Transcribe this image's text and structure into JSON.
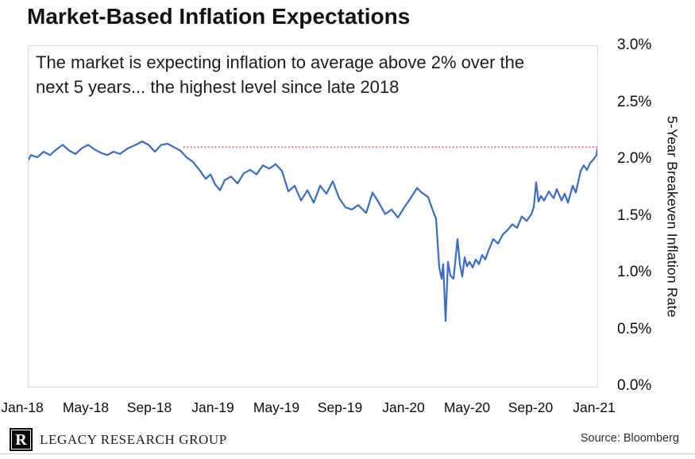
{
  "title": "Market-Based Inflation Expectations",
  "annotation": {
    "line1": "The market is expecting inflation to average above 2% over the",
    "line2": "next 5 years... the highest level since late 2018"
  },
  "footer": {
    "brand": "LEGACY RESEARCH GROUP",
    "logo_letter": "R",
    "source": "Source: Bloomberg"
  },
  "colors": {
    "line": "#3a6bc5",
    "reference_line": "#ee6f67",
    "plot_border": "#d9d9d9",
    "text": "#131313"
  },
  "chart_data": {
    "type": "line",
    "title": "Market-Based Inflation Expectations",
    "xlabel": "",
    "ylabel": "5-Year Breakeven Inflation Rate",
    "ylim": [
      0.0,
      3.0
    ],
    "grid": false,
    "legend": "none",
    "x_unit": "months since Jan-2018",
    "y_ticks": [
      {
        "value": 3.0,
        "label": "3.0%"
      },
      {
        "value": 2.5,
        "label": "2.5%"
      },
      {
        "value": 2.0,
        "label": "2.0%"
      },
      {
        "value": 1.5,
        "label": "1.5%"
      },
      {
        "value": 1.0,
        "label": "1.0%"
      },
      {
        "value": 0.5,
        "label": "0.5%"
      },
      {
        "value": 0.0,
        "label": "0.0%"
      }
    ],
    "x_ticks": [
      {
        "month": 0,
        "label": "Jan-18"
      },
      {
        "month": 4,
        "label": "May-18"
      },
      {
        "month": 8,
        "label": "Sep-18"
      },
      {
        "month": 12,
        "label": "Jan-19"
      },
      {
        "month": 16,
        "label": "May-19"
      },
      {
        "month": 20,
        "label": "Sep-19"
      },
      {
        "month": 24,
        "label": "Jan-20"
      },
      {
        "month": 28,
        "label": "May-20"
      },
      {
        "month": 32,
        "label": "Sep-20"
      },
      {
        "month": 36,
        "label": "Jan-21"
      }
    ],
    "reference_line": {
      "value": 2.11,
      "style": "dotted",
      "color": "#ee6f67",
      "start_month": 10,
      "end_month": 36.15
    },
    "series": [
      {
        "name": "5-Year Breakeven Inflation Rate",
        "color": "#3a6bc5",
        "points": [
          [
            0,
            2.0
          ],
          [
            0.4,
            2.04
          ],
          [
            0.8,
            2.02
          ],
          [
            1.2,
            2.07
          ],
          [
            1.6,
            2.04
          ],
          [
            2,
            2.09
          ],
          [
            2.4,
            2.13
          ],
          [
            2.8,
            2.08
          ],
          [
            3.2,
            2.05
          ],
          [
            3.6,
            2.1
          ],
          [
            4,
            2.13
          ],
          [
            4.4,
            2.09
          ],
          [
            4.8,
            2.06
          ],
          [
            5.2,
            2.04
          ],
          [
            5.6,
            2.07
          ],
          [
            6,
            2.05
          ],
          [
            6.5,
            2.1
          ],
          [
            7,
            2.13
          ],
          [
            7.4,
            2.16
          ],
          [
            7.8,
            2.13
          ],
          [
            8.2,
            2.07
          ],
          [
            8.6,
            2.13
          ],
          [
            9,
            2.14
          ],
          [
            9.4,
            2.11
          ],
          [
            9.8,
            2.08
          ],
          [
            10.2,
            2.02
          ],
          [
            10.6,
            1.98
          ],
          [
            11,
            1.91
          ],
          [
            11.4,
            1.83
          ],
          [
            11.7,
            1.87
          ],
          [
            12,
            1.78
          ],
          [
            12.3,
            1.73
          ],
          [
            12.6,
            1.82
          ],
          [
            13,
            1.85
          ],
          [
            13.4,
            1.79
          ],
          [
            13.8,
            1.88
          ],
          [
            14.2,
            1.91
          ],
          [
            14.6,
            1.87
          ],
          [
            15,
            1.95
          ],
          [
            15.4,
            1.92
          ],
          [
            15.8,
            1.96
          ],
          [
            16.2,
            1.9
          ],
          [
            16.6,
            1.72
          ],
          [
            17,
            1.77
          ],
          [
            17.4,
            1.64
          ],
          [
            17.8,
            1.73
          ],
          [
            18.2,
            1.62
          ],
          [
            18.6,
            1.77
          ],
          [
            19,
            1.7
          ],
          [
            19.4,
            1.81
          ],
          [
            19.8,
            1.66
          ],
          [
            20.2,
            1.58
          ],
          [
            20.6,
            1.56
          ],
          [
            21,
            1.6
          ],
          [
            21.5,
            1.53
          ],
          [
            21.9,
            1.71
          ],
          [
            22.3,
            1.62
          ],
          [
            22.7,
            1.52
          ],
          [
            23.1,
            1.56
          ],
          [
            23.5,
            1.49
          ],
          [
            23.9,
            1.58
          ],
          [
            24.3,
            1.66
          ],
          [
            24.7,
            1.75
          ],
          [
            25,
            1.71
          ],
          [
            25.4,
            1.67
          ],
          [
            25.7,
            1.55
          ],
          [
            25.9,
            1.48
          ],
          [
            26.1,
            1.05
          ],
          [
            26.25,
            0.95
          ],
          [
            26.35,
            1.08
          ],
          [
            26.5,
            0.58
          ],
          [
            26.65,
            1.1
          ],
          [
            26.8,
            0.98
          ],
          [
            27,
            0.95
          ],
          [
            27.25,
            1.3
          ],
          [
            27.4,
            1.08
          ],
          [
            27.55,
            0.97
          ],
          [
            27.7,
            1.14
          ],
          [
            27.85,
            1.06
          ],
          [
            28,
            1.1
          ],
          [
            28.2,
            1.05
          ],
          [
            28.4,
            1.12
          ],
          [
            28.6,
            1.08
          ],
          [
            28.8,
            1.16
          ],
          [
            29,
            1.12
          ],
          [
            29.2,
            1.2
          ],
          [
            29.5,
            1.3
          ],
          [
            29.8,
            1.26
          ],
          [
            30.1,
            1.34
          ],
          [
            30.4,
            1.38
          ],
          [
            30.7,
            1.43
          ],
          [
            31,
            1.4
          ],
          [
            31.3,
            1.5
          ],
          [
            31.6,
            1.46
          ],
          [
            31.9,
            1.52
          ],
          [
            32.05,
            1.58
          ],
          [
            32.2,
            1.8
          ],
          [
            32.35,
            1.63
          ],
          [
            32.5,
            1.68
          ],
          [
            32.7,
            1.64
          ],
          [
            33,
            1.72
          ],
          [
            33.3,
            1.66
          ],
          [
            33.5,
            1.74
          ],
          [
            33.8,
            1.64
          ],
          [
            34,
            1.7
          ],
          [
            34.2,
            1.62
          ],
          [
            34.5,
            1.77
          ],
          [
            34.7,
            1.71
          ],
          [
            35,
            1.9
          ],
          [
            35.2,
            1.95
          ],
          [
            35.4,
            1.91
          ],
          [
            35.6,
            1.97
          ],
          [
            35.8,
            2.0
          ],
          [
            36,
            2.04
          ],
          [
            36.15,
            2.09
          ]
        ]
      }
    ]
  }
}
